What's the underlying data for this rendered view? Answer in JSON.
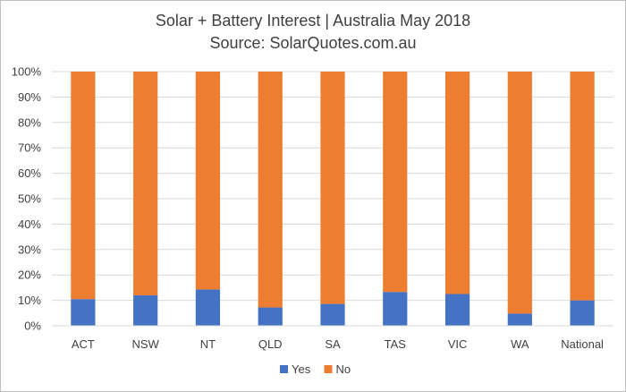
{
  "chart_data": {
    "type": "bar",
    "stacked": true,
    "title": "Solar + Battery Interest  | Australia May 2018",
    "subtitle": "Source: SolarQuotes.com.au",
    "xlabel": "",
    "ylabel": "",
    "categories": [
      "ACT",
      "NSW",
      "NT",
      "QLD",
      "SA",
      "TAS",
      "VIC",
      "WA",
      "National"
    ],
    "series": [
      {
        "name": "Yes",
        "color": "#4472c4",
        "values": [
          10.5,
          12,
          14.3,
          7.2,
          8.6,
          13.3,
          12.5,
          4.8,
          10
        ]
      },
      {
        "name": "No",
        "color": "#ed7d31",
        "values": [
          89.5,
          88,
          85.7,
          92.8,
          91.4,
          86.7,
          87.5,
          95.2,
          90
        ]
      }
    ],
    "ylim": [
      0,
      100
    ],
    "yticks": [
      "0%",
      "10%",
      "20%",
      "30%",
      "40%",
      "50%",
      "60%",
      "70%",
      "80%",
      "90%",
      "100%"
    ],
    "grid": true,
    "legend": "bottom"
  }
}
